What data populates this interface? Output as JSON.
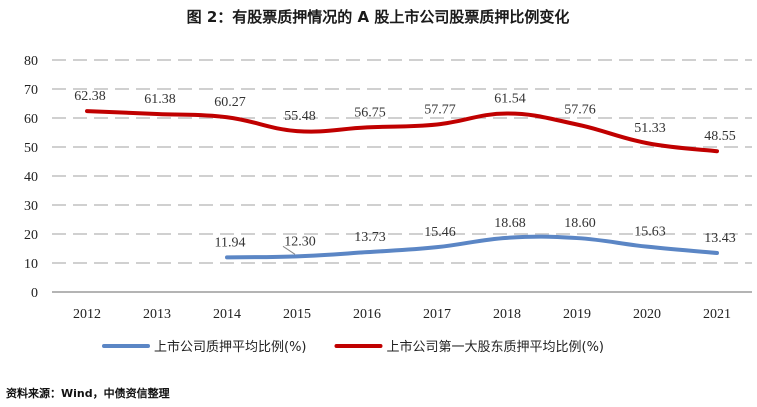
{
  "chart_data": {
    "type": "line",
    "title": "图 2：有股票质押情况的 A 股上市公司股票质押比例变化",
    "categories": [
      "2012",
      "2013",
      "2014",
      "2015",
      "2016",
      "2017",
      "2018",
      "2019",
      "2020",
      "2021"
    ],
    "ylim": [
      0,
      80
    ],
    "yticks": [
      0,
      10,
      20,
      30,
      40,
      50,
      60,
      70,
      80
    ],
    "grid": true,
    "legend_position": "bottom",
    "series": [
      {
        "name": "上市公司质押平均比例(%)",
        "color": "#5b86c5",
        "values": [
          null,
          null,
          11.94,
          12.3,
          13.73,
          15.46,
          18.68,
          18.6,
          15.63,
          13.43
        ],
        "labels": [
          null,
          null,
          "11.94",
          "12.30",
          "13.73",
          "15.46",
          "18.68",
          "18.60",
          "15.63",
          "13.43"
        ]
      },
      {
        "name": "上市公司第一大股东质押平均比例(%)",
        "color": "#c00000",
        "values": [
          62.38,
          61.38,
          60.27,
          55.48,
          56.75,
          57.77,
          61.54,
          57.76,
          51.33,
          48.55
        ],
        "labels": [
          "62.38",
          "61.38",
          "60.27",
          "55.48",
          "56.75",
          "57.77",
          "61.54",
          "57.76",
          "51.33",
          "48.55"
        ]
      }
    ],
    "source": "资料来源：Wind，中债资信整理"
  }
}
